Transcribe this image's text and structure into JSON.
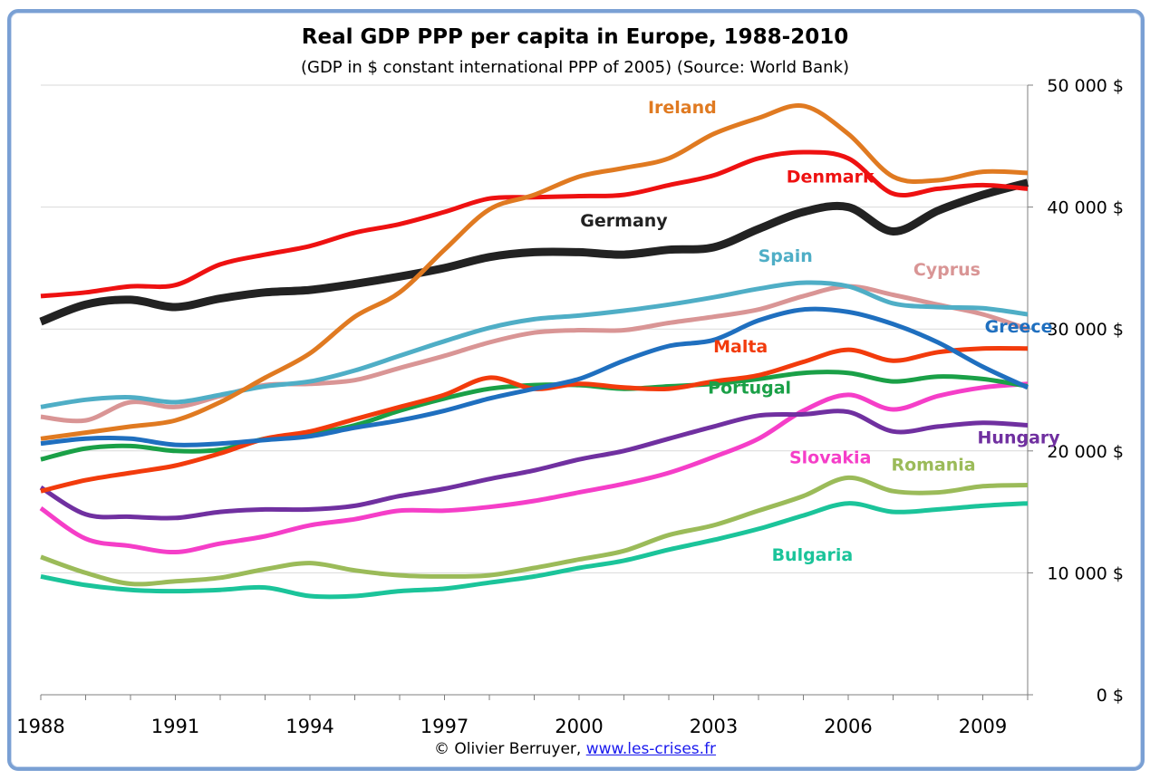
{
  "chart_data": {
    "type": "line",
    "title": "Real GDP PPP per capita in Europe, 1988-2010",
    "subtitle": "(GDP in $ constant international PPP of 2005) (Source: World Bank)",
    "xlabel": "",
    "ylabel": "",
    "x": [
      1988,
      1989,
      1990,
      1991,
      1992,
      1993,
      1994,
      1995,
      1996,
      1997,
      1998,
      1999,
      2000,
      2001,
      2002,
      2003,
      2004,
      2005,
      2006,
      2007,
      2008,
      2009,
      2010
    ],
    "x_ticks": [
      "1988",
      "1991",
      "1994",
      "1997",
      "2000",
      "2003",
      "2006",
      "2009"
    ],
    "y_ticks": [
      "0 $",
      "10 000 $",
      "20 000 $",
      "30 000 $",
      "40 000 $",
      "50 000 $"
    ],
    "ylim": [
      0,
      50000
    ],
    "xlim": [
      1988,
      2010
    ],
    "grid": "horizontal",
    "legend": "inline labels",
    "series": [
      {
        "name": "Ireland",
        "color": "#e07a21",
        "values": [
          21000,
          21500,
          22000,
          22500,
          24000,
          26000,
          28000,
          31000,
          33000,
          36500,
          39800,
          41000,
          42500,
          43200,
          44000,
          46000,
          47300,
          48300,
          46000,
          42500,
          42200,
          42900,
          42800
        ]
      },
      {
        "name": "Denmark",
        "color": "#ee1111",
        "values": [
          32700,
          33000,
          33500,
          33600,
          35300,
          36100,
          36800,
          37900,
          38600,
          39600,
          40700,
          40800,
          40900,
          41000,
          41800,
          42600,
          44000,
          44500,
          44000,
          41100,
          41500,
          41800,
          41500
        ]
      },
      {
        "name": "Germany",
        "color": "#222222",
        "values": [
          30600,
          32000,
          32400,
          31800,
          32500,
          33000,
          33200,
          33700,
          34300,
          35000,
          35900,
          36300,
          36300,
          36100,
          36500,
          36700,
          38200,
          39600,
          40000,
          38000,
          39700,
          41000,
          42000
        ]
      },
      {
        "name": "Spain",
        "color": "#4faec6",
        "values": [
          23600,
          24200,
          24400,
          24000,
          24600,
          25300,
          25700,
          26600,
          27800,
          29000,
          30100,
          30800,
          31100,
          31500,
          32000,
          32600,
          33300,
          33800,
          33500,
          32100,
          31800,
          31700,
          31200
        ]
      },
      {
        "name": "Cyprus",
        "color": "#d99595",
        "values": [
          22800,
          22500,
          24000,
          23600,
          24500,
          25400,
          25500,
          25800,
          26800,
          27800,
          28900,
          29700,
          29900,
          29900,
          30500,
          31000,
          31600,
          32700,
          33500,
          32800,
          32000,
          31200,
          30000
        ]
      },
      {
        "name": "Greece",
        "color": "#1f6fbf",
        "values": [
          20600,
          21000,
          21000,
          20500,
          20600,
          20900,
          21200,
          21900,
          22500,
          23300,
          24300,
          25100,
          25900,
          27400,
          28600,
          29100,
          30700,
          31600,
          31400,
          30400,
          28900,
          26900,
          25200
        ]
      },
      {
        "name": "Malta",
        "color": "#f23b0c",
        "values": [
          16700,
          17600,
          18200,
          18800,
          19800,
          21000,
          21600,
          22600,
          23600,
          24600,
          26000,
          25100,
          25500,
          25200,
          25100,
          25700,
          26200,
          27300,
          28300,
          27400,
          28100,
          28400,
          28400
        ]
      },
      {
        "name": "Portugal",
        "color": "#1aa047",
        "values": [
          19300,
          20200,
          20400,
          20000,
          20100,
          21000,
          21400,
          22100,
          23300,
          24300,
          25100,
          25400,
          25400,
          25100,
          25300,
          25500,
          25900,
          26400,
          26400,
          25700,
          26100,
          25900,
          25300
        ]
      },
      {
        "name": "Hungary",
        "color": "#7030a0",
        "values": [
          17000,
          14800,
          14600,
          14500,
          15000,
          15200,
          15200,
          15500,
          16300,
          16900,
          17700,
          18400,
          19300,
          20000,
          21000,
          22000,
          22900,
          23000,
          23200,
          21600,
          22000,
          22300,
          22100
        ]
      },
      {
        "name": "Slovakia",
        "color": "#f53ec8",
        "values": [
          15300,
          12800,
          12200,
          11700,
          12400,
          13000,
          13900,
          14400,
          15100,
          15100,
          15400,
          15900,
          16600,
          17300,
          18200,
          19500,
          21000,
          23300,
          24600,
          23400,
          24500,
          25200,
          25500
        ]
      },
      {
        "name": "Romania",
        "color": "#9bbb59",
        "values": [
          11300,
          10000,
          9100,
          9300,
          9600,
          10300,
          10800,
          10200,
          9800,
          9700,
          9800,
          10400,
          11100,
          11800,
          13100,
          13900,
          15100,
          16300,
          17800,
          16700,
          16600,
          17100,
          17200
        ]
      },
      {
        "name": "Bulgaria",
        "color": "#1bc49a",
        "values": [
          9700,
          9000,
          8600,
          8500,
          8600,
          8800,
          8100,
          8100,
          8500,
          8700,
          9200,
          9700,
          10400,
          11000,
          11900,
          12700,
          13600,
          14700,
          15700,
          15000,
          15200,
          15500,
          15700
        ]
      }
    ],
    "labels": [
      {
        "text": "Ireland",
        "series": "Ireland",
        "x": 2002.3,
        "y": 47700
      },
      {
        "text": "Denmark",
        "series": "Denmark",
        "x": 2005.6,
        "y": 42000
      },
      {
        "text": "Germany",
        "series": "Germany",
        "x": 2001.0,
        "y": 38400
      },
      {
        "text": "Spain",
        "series": "Spain",
        "x": 2004.6,
        "y": 35500
      },
      {
        "text": "Cyprus",
        "series": "Cyprus",
        "x": 2008.2,
        "y": 34400
      },
      {
        "text": "Greece",
        "series": "Greece",
        "x": 2009.8,
        "y": 29700
      },
      {
        "text": "Malta",
        "series": "Malta",
        "x": 2003.6,
        "y": 28100
      },
      {
        "text": "Portugal",
        "series": "Portugal",
        "x": 2003.8,
        "y": 24700
      },
      {
        "text": "Hungary",
        "series": "Hungary",
        "x": 2009.8,
        "y": 20600
      },
      {
        "text": "Slovakia",
        "series": "Slovakia",
        "x": 2005.6,
        "y": 19000
      },
      {
        "text": "Romania",
        "series": "Romania",
        "x": 2007.9,
        "y": 18400
      },
      {
        "text": "Bulgaria",
        "series": "Bulgaria",
        "x": 2005.2,
        "y": 11000
      }
    ]
  },
  "credit": {
    "prefix": "© Olivier Berruyer, ",
    "link": "www.les-crises.fr"
  },
  "colors": {
    "frame": "#7aa0d4",
    "grid": "#d9d9d9",
    "axis": "#7f7f7f"
  }
}
